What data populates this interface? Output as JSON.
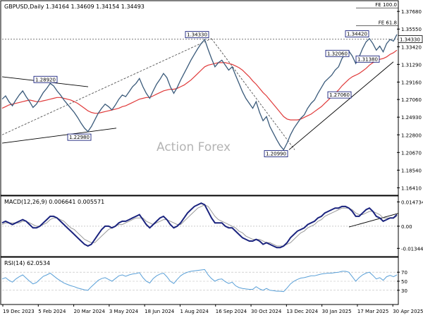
{
  "header": {
    "symbol_line": "GBPUSD,Daily  1.34164 1.34609 1.34154 1.34493"
  },
  "watermark": "Action Forex",
  "colors": {
    "price": "#3a5a7a",
    "ma": "#e03a3a",
    "macd": "#1a237e",
    "signal": "#9a9a9a",
    "rsi": "#5aa0d8",
    "label_border": "#1a237e",
    "trendline": "#000000",
    "dashed": "#555555",
    "price_tag_bg": "#ffffff"
  },
  "chart_data": [
    {
      "type": "line",
      "panel": "price",
      "title": "GBPUSD,Daily",
      "ylim": [
        1.156,
        1.388
      ],
      "y_ticks": [
        "1.37680",
        "1.35550",
        "1.33420",
        "1.31290",
        "1.29160",
        "1.27060",
        "1.24930",
        "1.22800",
        "1.20670",
        "1.18540",
        "1.16410"
      ],
      "y_tick_values": [
        1.3768,
        1.3555,
        1.3342,
        1.3129,
        1.2916,
        1.2706,
        1.2493,
        1.228,
        1.2067,
        1.1854,
        1.1641
      ],
      "x_ticks": [
        "19 Dec 2023",
        "5 Feb 2024",
        "20 Mar 2024",
        "3 May 2024",
        "18 Jun 2024",
        "1 Aug 2024",
        "16 Sep 2024",
        "30 Oct 2024",
        "13 Dec 2024",
        "30 Jan 2025",
        "17 Mar 2025",
        "30 Apr 2025"
      ],
      "current_price": "1.34330",
      "fib_levels": [
        {
          "label": "FE 100.0",
          "value": 1.381
        },
        {
          "label": "FE 61.8",
          "value": 1.3595
        }
      ],
      "annotations": [
        {
          "label": "1.28920",
          "value": 1.2892
        },
        {
          "label": "1.22980",
          "value": 1.2298
        },
        {
          "label": "1.34330",
          "value": 1.3433
        },
        {
          "label": "1.20990",
          "value": 1.2099
        },
        {
          "label": "1.27060",
          "value": 1.2706
        },
        {
          "label": "1.32060",
          "value": 1.3206
        },
        {
          "label": "1.34420",
          "value": 1.3442
        },
        {
          "label": "1.31380",
          "value": 1.3138
        }
      ],
      "series": [
        {
          "name": "",
          "values": [
            1.271,
            1.275,
            1.268,
            1.263,
            1.27,
            1.276,
            1.281,
            1.274,
            1.268,
            1.261,
            1.265,
            1.272,
            1.279,
            1.284,
            1.29,
            1.287,
            1.281,
            1.276,
            1.27,
            1.265,
            1.26,
            1.255,
            1.249,
            1.242,
            1.236,
            1.232,
            1.238,
            1.246,
            1.254,
            1.26,
            1.265,
            1.262,
            1.258,
            1.264,
            1.271,
            1.276,
            1.274,
            1.28,
            1.286,
            1.29,
            1.296,
            1.286,
            1.278,
            1.272,
            1.281,
            1.289,
            1.295,
            1.302,
            1.297,
            1.286,
            1.278,
            1.285,
            1.294,
            1.302,
            1.31,
            1.318,
            1.325,
            1.332,
            1.338,
            1.343,
            1.331,
            1.32,
            1.31,
            1.315,
            1.318,
            1.312,
            1.306,
            1.31,
            1.3,
            1.29,
            1.28,
            1.272,
            1.266,
            1.26,
            1.268,
            1.255,
            1.245,
            1.25,
            1.238,
            1.23,
            1.222,
            1.215,
            1.21,
            1.218,
            1.228,
            1.236,
            1.242,
            1.248,
            1.252,
            1.26,
            1.266,
            1.27,
            1.278,
            1.285,
            1.292,
            1.296,
            1.3,
            1.306,
            1.31,
            1.32,
            1.326,
            1.329,
            1.323,
            1.314,
            1.322,
            1.332,
            1.34,
            1.344,
            1.338,
            1.33,
            1.335,
            1.328,
            1.338,
            1.343,
            1.341,
            1.349
          ]
        },
        {
          "name": "",
          "values": [
            1.26,
            1.262,
            1.264,
            1.265,
            1.266,
            1.267,
            1.268,
            1.269,
            1.27,
            1.269,
            1.268,
            1.268,
            1.269,
            1.27,
            1.271,
            1.272,
            1.273,
            1.273,
            1.272,
            1.271,
            1.27,
            1.268,
            1.266,
            1.263,
            1.26,
            1.257,
            1.255,
            1.254,
            1.254,
            1.255,
            1.256,
            1.257,
            1.258,
            1.259,
            1.26,
            1.262,
            1.263,
            1.265,
            1.267,
            1.269,
            1.271,
            1.272,
            1.273,
            1.273,
            1.275,
            1.277,
            1.279,
            1.281,
            1.282,
            1.283,
            1.283,
            1.284,
            1.286,
            1.288,
            1.291,
            1.294,
            1.298,
            1.302,
            1.306,
            1.31,
            1.312,
            1.313,
            1.314,
            1.315,
            1.315,
            1.315,
            1.314,
            1.313,
            1.311,
            1.309,
            1.306,
            1.302,
            1.298,
            1.293,
            1.289,
            1.284,
            1.279,
            1.275,
            1.27,
            1.265,
            1.26,
            1.255,
            1.25,
            1.247,
            1.246,
            1.246,
            1.246,
            1.247,
            1.249,
            1.251,
            1.253,
            1.256,
            1.259,
            1.262,
            1.266,
            1.27,
            1.274,
            1.278,
            1.282,
            1.287,
            1.291,
            1.295,
            1.298,
            1.3,
            1.302,
            1.305,
            1.308,
            1.312,
            1.315,
            1.317,
            1.319,
            1.32,
            1.322,
            1.325,
            1.327,
            1.33
          ]
        }
      ]
    },
    {
      "type": "line",
      "panel": "macd",
      "title": "MACD(12,26,9) 0.006641 0.005571",
      "ylim": [
        -0.018,
        0.0175
      ],
      "y_ticks": [
        "0.014734",
        "0.00",
        "-0.013442"
      ],
      "y_tick_values": [
        0.014734,
        0.0,
        -0.013442
      ],
      "series": [
        {
          "name": "",
          "values": [
            0.002,
            0.003,
            0.002,
            0.001,
            0.002,
            0.003,
            0.004,
            0.003,
            0.001,
            -0.001,
            -0.001,
            0.0,
            0.002,
            0.004,
            0.006,
            0.006,
            0.005,
            0.003,
            0.001,
            -0.001,
            -0.003,
            -0.005,
            -0.007,
            -0.009,
            -0.011,
            -0.012,
            -0.011,
            -0.008,
            -0.005,
            -0.002,
            0.0,
            0.0,
            -0.001,
            0.0,
            0.002,
            0.003,
            0.003,
            0.004,
            0.005,
            0.006,
            0.007,
            0.004,
            0.001,
            -0.001,
            0.001,
            0.003,
            0.005,
            0.006,
            0.004,
            0.001,
            -0.001,
            0.0,
            0.002,
            0.005,
            0.008,
            0.01,
            0.012,
            0.013,
            0.014,
            0.013,
            0.009,
            0.005,
            0.002,
            0.002,
            0.002,
            0.0,
            -0.001,
            -0.001,
            -0.003,
            -0.005,
            -0.007,
            -0.008,
            -0.009,
            -0.009,
            -0.008,
            -0.009,
            -0.011,
            -0.01,
            -0.011,
            -0.012,
            -0.013,
            -0.013,
            -0.012,
            -0.01,
            -0.007,
            -0.005,
            -0.003,
            -0.002,
            -0.001,
            0.001,
            0.002,
            0.003,
            0.005,
            0.006,
            0.008,
            0.009,
            0.01,
            0.011,
            0.011,
            0.012,
            0.012,
            0.011,
            0.009,
            0.006,
            0.006,
            0.008,
            0.01,
            0.011,
            0.009,
            0.006,
            0.005,
            0.003,
            0.004,
            0.005,
            0.005,
            0.007
          ]
        },
        {
          "name": "",
          "values": [
            0.001,
            0.002,
            0.002,
            0.002,
            0.002,
            0.002,
            0.003,
            0.003,
            0.002,
            0.001,
            0.0,
            0.0,
            0.001,
            0.002,
            0.004,
            0.005,
            0.005,
            0.004,
            0.003,
            0.001,
            -0.001,
            -0.002,
            -0.004,
            -0.006,
            -0.008,
            -0.009,
            -0.01,
            -0.01,
            -0.008,
            -0.006,
            -0.004,
            -0.002,
            -0.001,
            0.0,
            0.001,
            0.001,
            0.002,
            0.003,
            0.004,
            0.005,
            0.005,
            0.005,
            0.003,
            0.002,
            0.001,
            0.002,
            0.003,
            0.004,
            0.004,
            0.003,
            0.002,
            0.001,
            0.001,
            0.003,
            0.005,
            0.007,
            0.009,
            0.011,
            0.012,
            0.013,
            0.012,
            0.009,
            0.006,
            0.004,
            0.003,
            0.002,
            0.001,
            0.0,
            -0.001,
            -0.003,
            -0.004,
            -0.006,
            -0.007,
            -0.008,
            -0.008,
            -0.008,
            -0.009,
            -0.01,
            -0.01,
            -0.011,
            -0.012,
            -0.012,
            -0.012,
            -0.011,
            -0.01,
            -0.008,
            -0.006,
            -0.004,
            -0.003,
            -0.001,
            0.0,
            0.001,
            0.003,
            0.004,
            0.006,
            0.007,
            0.008,
            0.009,
            0.01,
            0.011,
            0.011,
            0.011,
            0.01,
            0.008,
            0.007,
            0.007,
            0.008,
            0.009,
            0.009,
            0.008,
            0.007,
            0.005,
            0.005,
            0.005,
            0.005,
            0.006
          ]
        }
      ]
    },
    {
      "type": "line",
      "panel": "rsi",
      "title": "RSI(14) 62.0534",
      "ylim": [
        0,
        100
      ],
      "y_ticks": [
        "70",
        "50",
        "30"
      ],
      "y_tick_values": [
        70,
        50,
        30
      ],
      "series": [
        {
          "name": "",
          "values": [
            55,
            58,
            52,
            48,
            55,
            60,
            64,
            57,
            50,
            44,
            47,
            54,
            61,
            64,
            68,
            62,
            56,
            51,
            46,
            43,
            40,
            38,
            35,
            33,
            31,
            30,
            38,
            45,
            52,
            56,
            58,
            54,
            50,
            56,
            62,
            64,
            61,
            64,
            66,
            67,
            69,
            58,
            50,
            46,
            56,
            62,
            66,
            68,
            60,
            50,
            45,
            54,
            62,
            67,
            70,
            72,
            73,
            74,
            75,
            76,
            64,
            56,
            50,
            54,
            55,
            49,
            45,
            48,
            40,
            36,
            34,
            33,
            32,
            32,
            38,
            33,
            30,
            34,
            30,
            29,
            28,
            28,
            27,
            35,
            44,
            50,
            54,
            57,
            58,
            60,
            62,
            62,
            64,
            66,
            67,
            68,
            68,
            69,
            70,
            72,
            72,
            70,
            60,
            50,
            58,
            64,
            68,
            70,
            63,
            55,
            58,
            52,
            60,
            63,
            60,
            64
          ]
        }
      ]
    }
  ]
}
